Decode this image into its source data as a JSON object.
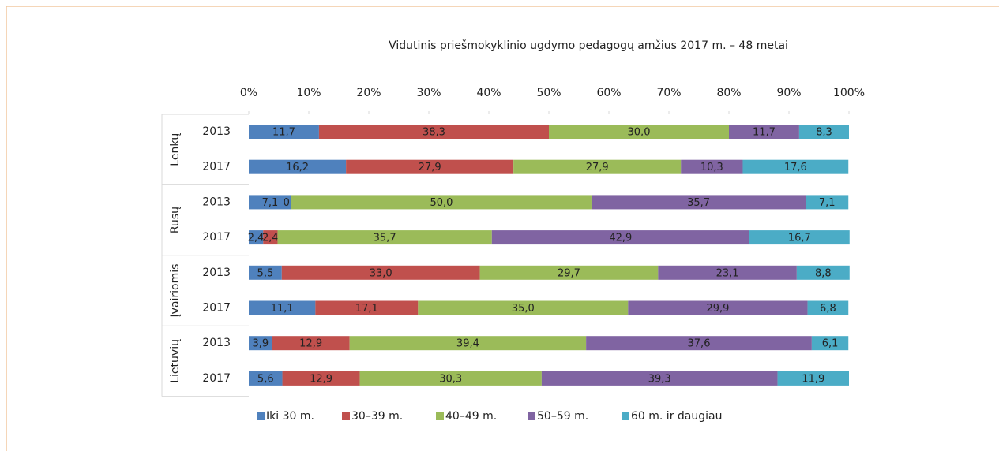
{
  "chart_data": {
    "type": "stacked-bar-horizontal",
    "title": "Vidutinis priešmokyklinio ugdymo pedagogų amžius 2017 m. – 48 metai",
    "groups": [
      "Lenkų",
      "Rusų",
      "Įvairiomis",
      "Lietuvių"
    ],
    "categories": [
      "2013",
      "2017",
      "2013",
      "2017",
      "2013",
      "2017",
      "2013",
      "2017"
    ],
    "series": [
      {
        "name": "Iki 30 m.",
        "color": "#4f81bd",
        "values": [
          11.7,
          16.2,
          7.1,
          2.4,
          5.5,
          11.1,
          3.9,
          5.6
        ],
        "value_labels": [
          "11,7",
          "16,2",
          "7,1",
          "2,4",
          "5,5",
          "11,1",
          "3,9",
          "5,6"
        ]
      },
      {
        "name": "30–39 m.",
        "color": "#c0504d",
        "values": [
          38.3,
          27.9,
          0.0,
          2.4,
          33.0,
          17.1,
          12.9,
          12.9
        ],
        "value_labels": [
          "38,3",
          "27,9",
          "0,0",
          "2,4",
          "33,0",
          "17,1",
          "12,9",
          "12,9"
        ]
      },
      {
        "name": "40–49 m.",
        "color": "#9bbb59",
        "values": [
          30.0,
          27.9,
          50.0,
          35.7,
          29.7,
          35.0,
          39.4,
          30.3
        ],
        "value_labels": [
          "30,0",
          "27,9",
          "50,0",
          "35,7",
          "29,7",
          "35,0",
          "39,4",
          "30,3"
        ]
      },
      {
        "name": "50–59 m.",
        "color": "#8064a2",
        "values": [
          11.7,
          10.3,
          35.7,
          42.9,
          23.1,
          29.9,
          37.6,
          39.3
        ],
        "value_labels": [
          "11,7",
          "10,3",
          "35,7",
          "42,9",
          "23,1",
          "29,9",
          "37,6",
          "39,3"
        ]
      },
      {
        "name": "60 m. ir daugiau",
        "color": "#4bacc6",
        "values": [
          8.3,
          17.6,
          7.1,
          16.7,
          8.8,
          6.8,
          6.1,
          11.9
        ],
        "value_labels": [
          "8,3",
          "17,6",
          "7,1",
          "16,7",
          "8,8",
          "6,8",
          "6,1",
          "11,9"
        ]
      }
    ],
    "xlim": [
      0,
      100
    ],
    "xticks": [
      {
        "value": 0,
        "label": "0%"
      },
      {
        "value": 10,
        "label": "10%"
      },
      {
        "value": 20,
        "label": "20%"
      },
      {
        "value": 30,
        "label": "30%"
      },
      {
        "value": 40,
        "label": "40%"
      },
      {
        "value": 50,
        "label": "50%"
      },
      {
        "value": 60,
        "label": "60%"
      },
      {
        "value": 70,
        "label": "70%"
      },
      {
        "value": 80,
        "label": "80%"
      },
      {
        "value": 90,
        "label": "90%"
      },
      {
        "value": 100,
        "label": "100%"
      }
    ],
    "legend": "bottom"
  }
}
